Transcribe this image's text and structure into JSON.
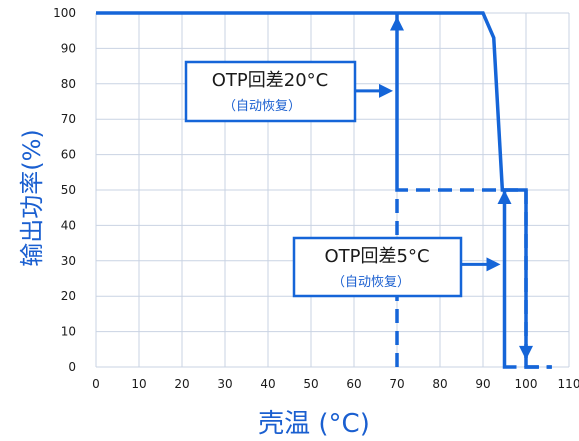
{
  "chart_data": {
    "type": "line",
    "xlabel": "壳温 (°C)",
    "ylabel": "输出功率(%)",
    "xlim": [
      0,
      110
    ],
    "ylim": [
      0,
      100
    ],
    "xticks": [
      0,
      10,
      20,
      30,
      40,
      50,
      60,
      70,
      80,
      90,
      100,
      110
    ],
    "yticks": [
      0,
      10,
      20,
      30,
      40,
      50,
      60,
      70,
      80,
      90,
      100
    ],
    "grid": true,
    "colors": {
      "line": "#1565d8",
      "grid": "#c9d3e3",
      "box": "#1565d8"
    },
    "series": [
      {
        "style": "solid",
        "points": [
          [
            0,
            100
          ],
          [
            90,
            100
          ],
          [
            92.5,
            93
          ],
          [
            94.5,
            50
          ],
          [
            100,
            50
          ],
          [
            100,
            0
          ]
        ]
      },
      {
        "style": "dashed",
        "points": [
          [
            70,
            0
          ],
          [
            70,
            100
          ],
          [
            70,
            50
          ],
          [
            100,
            50
          ],
          [
            100,
            0
          ],
          [
            106,
            0
          ]
        ]
      },
      {
        "style": "dashed",
        "points": [
          [
            95,
            0
          ],
          [
            95,
            50
          ],
          [
            95,
            0
          ],
          [
            106,
            0
          ]
        ]
      }
    ],
    "annotations": [
      {
        "line1": "OTP回差20°C",
        "line2": "（自动恢复）"
      },
      {
        "line1": "OTP回差5°C",
        "line2": "（自动恢复）"
      }
    ]
  }
}
